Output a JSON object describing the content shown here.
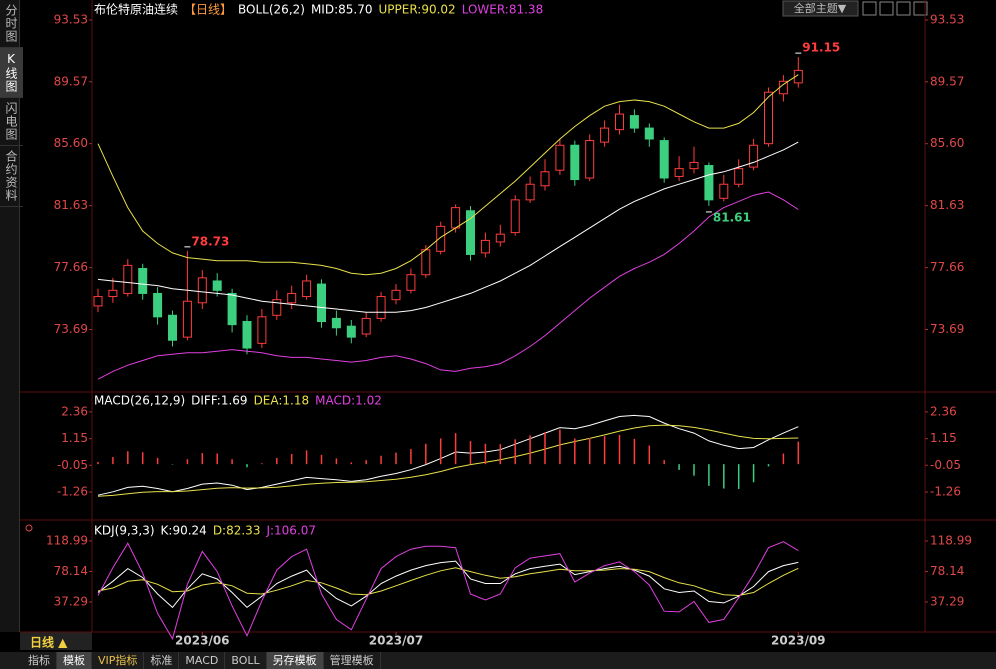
{
  "ui": {
    "sidebar": [
      "分时图",
      "K线图",
      "闪电图",
      "合约资料"
    ],
    "theme_button": "全部主题▼",
    "period": "日线 ▲",
    "tabs": [
      "指标",
      "模板",
      "VIP指标",
      "标准",
      "MACD",
      "BOLL",
      "另存模板",
      "管理模板"
    ]
  },
  "chart_data": [
    {
      "type": "candlestick",
      "title": "布伦特原油连续",
      "subtitle": "【日线】",
      "indicator": "BOLL(26,2)",
      "categories": [
        null,
        null,
        null,
        null,
        null,
        null,
        null,
        "2023/06",
        null,
        null,
        null,
        null,
        null,
        null,
        null,
        null,
        null,
        null,
        null,
        null,
        "2023/07",
        null,
        null,
        null,
        null,
        null,
        null,
        null,
        null,
        null,
        null,
        null,
        null,
        null,
        null,
        null,
        null,
        null,
        null,
        null,
        null,
        null,
        null,
        null,
        null,
        null,
        null,
        "2023/09"
      ],
      "open": [
        75.2,
        75.8,
        76.0,
        77.6,
        76.0,
        74.6,
        73.2,
        75.4,
        76.8,
        76.0,
        74.2,
        72.8,
        74.6,
        75.4,
        75.8,
        76.6,
        74.4,
        73.9,
        73.4,
        74.4,
        75.6,
        76.2,
        77.2,
        78.7,
        80.2,
        81.3,
        78.6,
        79.3,
        79.9,
        82.0,
        82.9,
        83.9,
        85.5,
        83.4,
        85.7,
        86.5,
        87.4,
        86.6,
        85.8,
        83.5,
        84.0,
        84.2,
        82.1,
        83.0,
        84.1,
        85.6,
        88.8,
        89.5
      ],
      "high": [
        76.3,
        77.0,
        78.2,
        77.9,
        76.4,
        74.9,
        78.73,
        77.5,
        77.3,
        76.3,
        74.6,
        75.0,
        76.2,
        76.5,
        77.2,
        76.9,
        74.9,
        74.3,
        74.8,
        76.1,
        76.6,
        77.6,
        79.1,
        80.6,
        81.7,
        81.6,
        79.9,
        80.4,
        82.3,
        83.5,
        84.6,
        85.9,
        85.8,
        86.2,
        87.1,
        88.1,
        87.8,
        86.9,
        86.0,
        84.8,
        85.4,
        84.4,
        83.6,
        84.6,
        85.9,
        89.2,
        90.0,
        91.15
      ],
      "low": [
        74.8,
        75.4,
        75.8,
        75.6,
        74.0,
        72.6,
        73.0,
        75.0,
        75.8,
        73.5,
        72.1,
        72.5,
        74.3,
        75.0,
        75.6,
        73.8,
        73.3,
        72.8,
        73.2,
        74.2,
        75.3,
        76.0,
        77.0,
        78.5,
        79.9,
        78.1,
        78.3,
        79.0,
        79.7,
        81.8,
        82.6,
        83.6,
        82.9,
        83.2,
        85.4,
        86.2,
        86.3,
        85.4,
        83.1,
        83.2,
        83.7,
        81.61,
        81.9,
        82.8,
        83.9,
        85.4,
        88.3,
        89.2
      ],
      "close": [
        75.8,
        76.2,
        77.8,
        76.0,
        74.5,
        73.0,
        75.5,
        77.0,
        76.2,
        74.0,
        72.5,
        74.5,
        75.6,
        76.0,
        76.8,
        74.2,
        73.8,
        73.2,
        74.4,
        75.8,
        76.2,
        77.2,
        78.8,
        80.3,
        81.5,
        78.5,
        79.4,
        79.8,
        82.0,
        83.0,
        83.8,
        85.5,
        83.3,
        85.8,
        86.6,
        87.5,
        86.6,
        85.9,
        83.4,
        84.0,
        84.4,
        82.0,
        83.0,
        84.0,
        85.5,
        88.9,
        89.6,
        90.3
      ],
      "up_color": "#ff3c3c",
      "down_color": "#3ccf7f",
      "annotations": [
        78.73,
        81.61,
        91.15
      ],
      "series": [
        {
          "name": "MID:85.70",
          "color": "#ffffff",
          "values": [
            76.9,
            76.8,
            76.7,
            76.6,
            76.5,
            76.3,
            76.2,
            76.1,
            76.0,
            75.9,
            75.7,
            75.5,
            75.4,
            75.3,
            75.2,
            75.1,
            75.0,
            74.9,
            74.8,
            74.8,
            74.8,
            74.9,
            75.1,
            75.4,
            75.7,
            76.0,
            76.4,
            76.8,
            77.3,
            77.8,
            78.4,
            79.0,
            79.6,
            80.2,
            80.8,
            81.4,
            81.9,
            82.3,
            82.7,
            83.0,
            83.3,
            83.6,
            83.8,
            84.1,
            84.4,
            84.8,
            85.2,
            85.7
          ]
        },
        {
          "name": "UPPER:90.02",
          "color": "#e8e04a",
          "values": [
            85.6,
            83.5,
            81.5,
            80.0,
            79.2,
            78.6,
            78.3,
            78.2,
            78.1,
            78.1,
            78.1,
            78.0,
            78.0,
            78.0,
            77.9,
            77.8,
            77.6,
            77.3,
            77.2,
            77.3,
            77.6,
            78.1,
            78.8,
            79.6,
            80.2,
            80.8,
            81.6,
            82.4,
            83.2,
            84.1,
            85.0,
            85.9,
            86.7,
            87.4,
            88.0,
            88.3,
            88.4,
            88.3,
            88.0,
            87.5,
            87.0,
            86.6,
            86.6,
            86.9,
            87.6,
            88.6,
            89.4,
            90.02
          ]
        },
        {
          "name": "LOWER:81.38",
          "color": "#e040e0",
          "values": [
            70.5,
            71.0,
            71.4,
            71.7,
            72.0,
            72.1,
            72.2,
            72.2,
            72.3,
            72.4,
            72.3,
            72.2,
            72.0,
            71.9,
            71.9,
            71.8,
            71.7,
            71.6,
            71.7,
            71.9,
            72.0,
            71.8,
            71.5,
            71.1,
            71.0,
            71.2,
            71.3,
            71.5,
            72.0,
            72.6,
            73.3,
            74.1,
            74.9,
            75.7,
            76.4,
            77.1,
            77.6,
            78.0,
            78.5,
            79.2,
            80.0,
            80.9,
            81.5,
            81.9,
            82.3,
            82.5,
            82.0,
            81.38
          ]
        }
      ],
      "ylim": [
        69.81,
        94.17
      ],
      "yticks": [
        93.53,
        89.57,
        {
          "value": 85.6,
          "label": "85.60"
        },
        81.63,
        77.66,
        73.69
      ]
    },
    {
      "type": "macd",
      "title": "MACD(26,12,9)",
      "series": [
        {
          "name": "DIFF:1.69",
          "kind": "line",
          "color": "#ffffff",
          "values": [
            -1.4,
            -1.25,
            -1.05,
            -1.0,
            -1.1,
            -1.25,
            -1.1,
            -0.9,
            -0.85,
            -0.95,
            -1.15,
            -1.05,
            -0.9,
            -0.75,
            -0.6,
            -0.65,
            -0.7,
            -0.78,
            -0.7,
            -0.55,
            -0.42,
            -0.25,
            -0.02,
            0.25,
            0.55,
            0.5,
            0.55,
            0.65,
            0.9,
            1.15,
            1.4,
            1.65,
            1.6,
            1.75,
            1.95,
            2.15,
            2.2,
            2.15,
            1.85,
            1.6,
            1.4,
            1.05,
            0.85,
            0.7,
            0.75,
            1.1,
            1.4,
            1.69
          ]
        },
        {
          "name": "DEA:1.18",
          "kind": "line",
          "color": "#e8e04a",
          "values": [
            -1.45,
            -1.41,
            -1.34,
            -1.27,
            -1.24,
            -1.24,
            -1.21,
            -1.15,
            -1.09,
            -1.06,
            -1.08,
            -1.07,
            -1.04,
            -0.98,
            -0.91,
            -0.86,
            -0.83,
            -0.82,
            -0.79,
            -0.74,
            -0.68,
            -0.59,
            -0.48,
            -0.33,
            -0.15,
            -0.02,
            0.09,
            0.2,
            0.34,
            0.5,
            0.68,
            0.87,
            1.02,
            1.16,
            1.32,
            1.49,
            1.63,
            1.73,
            1.76,
            1.73,
            1.66,
            1.54,
            1.4,
            1.26,
            1.16,
            1.15,
            1.16,
            1.18
          ]
        },
        {
          "name": "MACD:1.02",
          "kind": "bar",
          "color": "#e040e0",
          "up_color": "#ff3c3c",
          "down_color": "#3ccf7f",
          "values": [
            0.1,
            0.32,
            0.58,
            0.54,
            0.28,
            -0.02,
            0.22,
            0.5,
            0.48,
            0.22,
            -0.14,
            0.04,
            0.28,
            0.46,
            0.62,
            0.42,
            0.26,
            0.08,
            0.18,
            0.38,
            0.52,
            0.68,
            0.92,
            1.16,
            1.4,
            1.04,
            0.92,
            0.9,
            1.12,
            1.3,
            1.44,
            1.56,
            1.16,
            1.18,
            1.26,
            1.32,
            1.14,
            0.84,
            0.18,
            -0.26,
            -0.52,
            -0.98,
            -1.1,
            -1.12,
            -0.82,
            -0.1,
            0.48,
            1.02
          ]
        }
      ],
      "ylim": [
        -2.43,
        3.12
      ],
      "yticks": [
        2.36,
        1.15,
        -0.05,
        -1.26
      ]
    },
    {
      "type": "line",
      "title": "KDJ(9,3,3)",
      "series": [
        {
          "name": "K:90.24",
          "color": "#ffffff",
          "values": [
            50,
            65,
            82,
            70,
            48,
            30,
            55,
            75,
            68,
            50,
            30,
            45,
            62,
            72,
            80,
            58,
            42,
            32,
            45,
            62,
            72,
            80,
            86,
            90,
            92,
            68,
            62,
            62,
            75,
            82,
            85,
            88,
            74,
            78,
            82,
            85,
            80,
            72,
            55,
            50,
            52,
            38,
            36,
            45,
            58,
            78,
            86,
            90.24
          ]
        },
        {
          "name": "D:82.33",
          "color": "#e8e04a",
          "values": [
            52,
            56,
            65,
            67,
            61,
            51,
            52,
            60,
            63,
            59,
            49,
            48,
            53,
            59,
            66,
            63,
            56,
            48,
            47,
            52,
            59,
            66,
            73,
            79,
            83,
            78,
            73,
            69,
            71,
            75,
            78,
            81,
            79,
            79,
            80,
            82,
            81,
            78,
            70,
            63,
            59,
            52,
            47,
            46,
            50,
            62,
            73,
            82.33
          ]
        },
        {
          "name": "J:106.07",
          "color": "#e040e0",
          "values": [
            46,
            83,
            116,
            76,
            22,
            -12,
            61,
            105,
            78,
            32,
            -8,
            39,
            80,
            98,
            108,
            48,
            14,
            0,
            41,
            82,
            98,
            108,
            112,
            112,
            110,
            48,
            40,
            48,
            83,
            96,
            99,
            102,
            64,
            76,
            86,
            91,
            78,
            60,
            25,
            24,
            38,
            10,
            14,
            43,
            74,
            110,
            118,
            106.07
          ]
        }
      ],
      "ylim": [
        -2.9,
        141.7
      ],
      "yticks": [
        118.99,
        78.14,
        37.29
      ]
    }
  ]
}
